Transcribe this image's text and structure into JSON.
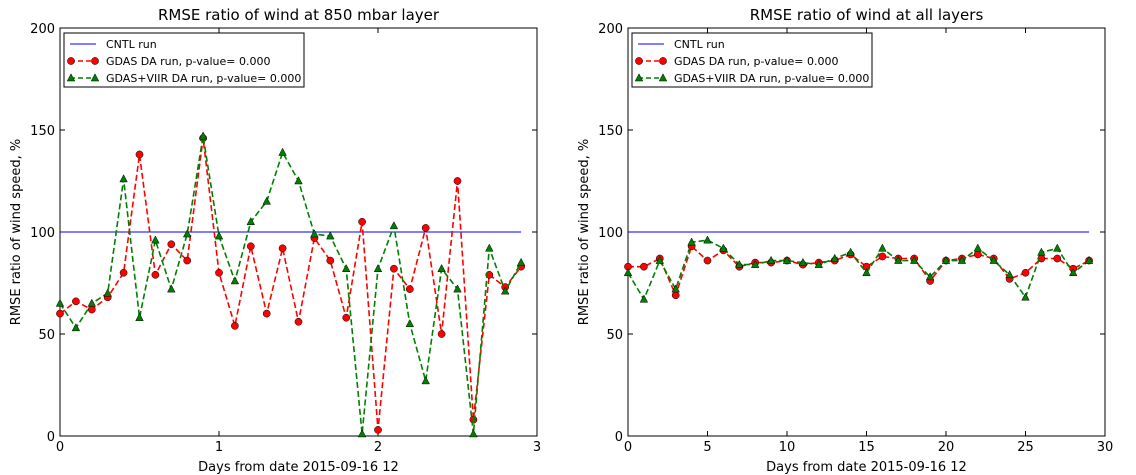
{
  "chart_data": [
    {
      "type": "line",
      "title": "RMSE ratio of wind at 850 mbar layer",
      "xlabel": "Days from date 2015-09-16 12",
      "ylabel": "RMSE ratio of wind speed, %",
      "xlim": [
        0,
        3
      ],
      "ylim": [
        0,
        200
      ],
      "xticks": [
        0,
        1,
        2,
        3
      ],
      "xtick_labels": [
        "0",
        "1",
        "2",
        "3"
      ],
      "yticks": [
        0,
        50,
        100,
        150,
        200
      ],
      "ytick_labels": [
        "0",
        "50",
        "100",
        "150",
        "200"
      ],
      "grid": false,
      "legend_position": "top-left",
      "series": [
        {
          "name": "CNTL run",
          "style": "solid",
          "marker": "none",
          "color": "#0000ff",
          "x": [
            0,
            2.9
          ],
          "values": [
            100,
            100
          ]
        },
        {
          "name": "GDAS DA run, p-value= 0.000",
          "style": "dashed",
          "marker": "circle",
          "color": "#ff0000",
          "x": [
            0.0,
            0.1,
            0.2,
            0.3,
            0.4,
            0.5,
            0.6,
            0.7,
            0.8,
            0.9,
            1.0,
            1.1,
            1.2,
            1.3,
            1.4,
            1.5,
            1.6,
            1.7,
            1.8,
            1.9,
            2.0,
            2.1,
            2.2,
            2.3,
            2.4,
            2.5,
            2.6,
            2.7,
            2.8,
            2.9
          ],
          "values": [
            60,
            66,
            62,
            68,
            80,
            138,
            79,
            94,
            86,
            146,
            80,
            54,
            93,
            60,
            92,
            56,
            97,
            86,
            58,
            105,
            3,
            82,
            72,
            102,
            50,
            125,
            8,
            79,
            73,
            83
          ]
        },
        {
          "name": "GDAS+VIIR DA run, p-value= 0.000",
          "style": "dashed",
          "marker": "triangle",
          "color": "#008000",
          "x": [
            0.0,
            0.1,
            0.2,
            0.3,
            0.4,
            0.5,
            0.6,
            0.7,
            0.8,
            0.9,
            1.0,
            1.1,
            1.2,
            1.3,
            1.4,
            1.5,
            1.6,
            1.7,
            1.8,
            1.9,
            2.0,
            2.1,
            2.2,
            2.3,
            2.4,
            2.5,
            2.6,
            2.7,
            2.8,
            2.9
          ],
          "values": [
            65,
            53,
            65,
            70,
            126,
            58,
            96,
            72,
            99,
            147,
            98,
            76,
            105,
            115,
            139,
            125,
            99,
            98,
            82,
            1,
            82,
            103,
            55,
            27,
            82,
            72,
            1,
            92,
            71,
            85
          ]
        }
      ]
    },
    {
      "type": "line",
      "title": "RMSE ratio of wind at all layers",
      "xlabel": "Days from date 2015-09-16 12",
      "ylabel": "RMSE ratio of wind speed, %",
      "xlim": [
        0,
        30
      ],
      "ylim": [
        0,
        200
      ],
      "xticks": [
        0,
        5,
        10,
        15,
        20,
        25,
        30
      ],
      "xtick_labels": [
        "0",
        "5",
        "10",
        "15",
        "20",
        "25",
        "30"
      ],
      "yticks": [
        0,
        50,
        100,
        150,
        200
      ],
      "ytick_labels": [
        "0",
        "50",
        "100",
        "150",
        "200"
      ],
      "grid": false,
      "legend_position": "top-left",
      "series": [
        {
          "name": "CNTL run",
          "style": "solid",
          "marker": "none",
          "color": "#0000ff",
          "x": [
            0,
            29
          ],
          "values": [
            100,
            100
          ]
        },
        {
          "name": "GDAS DA run, p-value= 0.000",
          "style": "dashed",
          "marker": "circle",
          "color": "#ff0000",
          "x": [
            0,
            1,
            2,
            3,
            4,
            5,
            6,
            7,
            8,
            9,
            10,
            11,
            12,
            13,
            14,
            15,
            16,
            17,
            18,
            19,
            20,
            21,
            22,
            23,
            24,
            25,
            26,
            27,
            28,
            29
          ],
          "values": [
            83,
            83,
            87,
            69,
            93,
            86,
            91,
            83,
            85,
            85,
            86,
            84,
            85,
            86,
            89,
            83,
            88,
            87,
            87,
            76,
            86,
            87,
            89,
            87,
            77,
            80,
            87,
            87,
            82,
            86
          ]
        },
        {
          "name": "GDAS+VIIR DA run, p-value= 0.000",
          "style": "dashed",
          "marker": "triangle",
          "color": "#008000",
          "x": [
            0,
            1,
            2,
            3,
            4,
            5,
            6,
            7,
            8,
            9,
            10,
            11,
            12,
            13,
            14,
            15,
            16,
            17,
            18,
            19,
            20,
            21,
            22,
            23,
            24,
            25,
            26,
            27,
            28,
            29
          ],
          "values": [
            80,
            67,
            86,
            72,
            95,
            96,
            92,
            84,
            84,
            86,
            86,
            85,
            84,
            87,
            90,
            80,
            92,
            86,
            86,
            78,
            86,
            86,
            92,
            86,
            79,
            68,
            90,
            92,
            80,
            86
          ]
        }
      ]
    }
  ]
}
